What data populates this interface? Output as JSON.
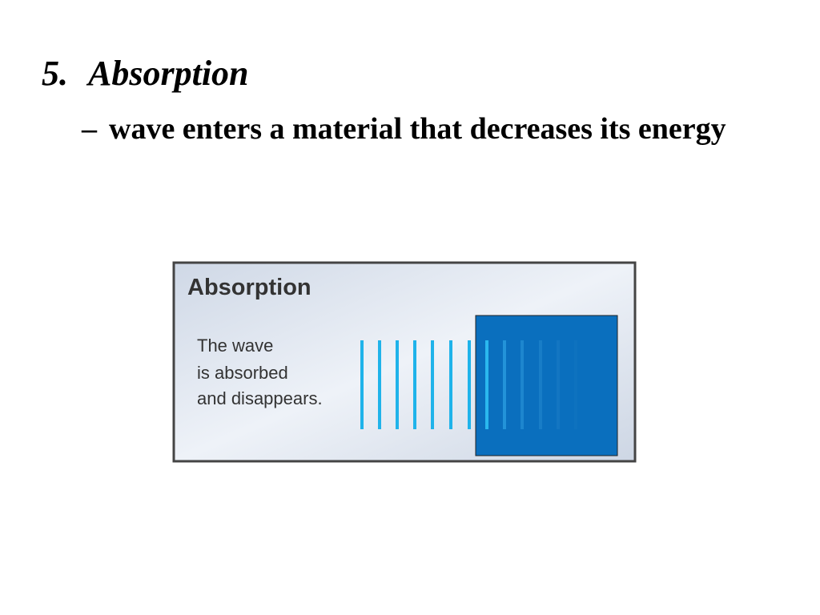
{
  "heading": {
    "number": "5.",
    "title": "Absorption"
  },
  "bullet": {
    "dash": "–",
    "text": "wave enters a material that decreases its energy"
  },
  "figure": {
    "title": "Absorption",
    "caption": [
      "The wave",
      "is absorbed",
      "and disappears."
    ]
  }
}
